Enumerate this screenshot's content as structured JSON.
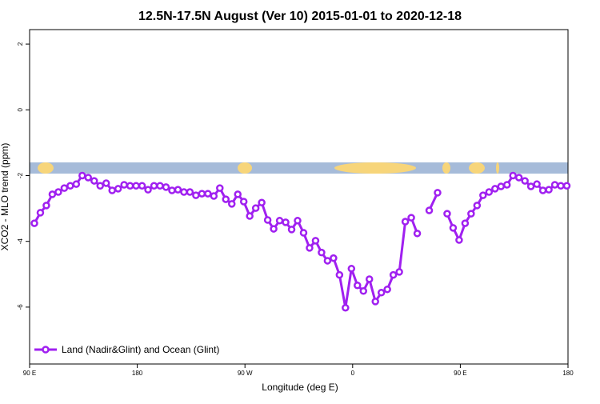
{
  "chart_data": {
    "type": "line",
    "title": "12.5N-17.5N August (Ver 10)   2015-01-01 to 2020-12-18",
    "x_label": "Longitude (deg E)",
    "y_label": "XCO2 - MLO trend (ppm)",
    "xlim": [
      90,
      540
    ],
    "ylim": [
      -7.73,
      2.44
    ],
    "xticks": [
      {
        "value": 90,
        "label": "90 E"
      },
      180,
      {
        "value": 270,
        "label": "90 W"
      },
      {
        "value": 360,
        "label": "0"
      },
      {
        "value": 450,
        "label": "90 E"
      },
      {
        "value": 540,
        "label": "180"
      }
    ],
    "yticks": [
      -6,
      -4,
      -2,
      0,
      2
    ],
    "legend": "bottom-left",
    "x": [
      94,
      99,
      104,
      109,
      114,
      119,
      124,
      129,
      134,
      139,
      144,
      149,
      154,
      159,
      164,
      169,
      174,
      179,
      184,
      189,
      194,
      199,
      204,
      209,
      214,
      219,
      224,
      229,
      234,
      239,
      244,
      249,
      254,
      259,
      264,
      269,
      274,
      279,
      284,
      289,
      294,
      299,
      304,
      309,
      314,
      319,
      324,
      329,
      334,
      339,
      344,
      349,
      354,
      359,
      364,
      369,
      374,
      379,
      384,
      389,
      394,
      399,
      404,
      409,
      414,
      419,
      424,
      431,
      435,
      439,
      444,
      449,
      454,
      459,
      464,
      469,
      474,
      479,
      484,
      489,
      494,
      499,
      504,
      509,
      514,
      519,
      524,
      529,
      534,
      539
    ],
    "series": [
      {
        "name": "Land (Nadir&Glint) and Ocean (Glint)",
        "color": "#a020f0",
        "values": [
          -3.45,
          -3.13,
          -2.91,
          -2.57,
          -2.5,
          -2.38,
          -2.31,
          -2.26,
          -2.0,
          -2.06,
          -2.16,
          -2.31,
          -2.23,
          -2.45,
          -2.4,
          -2.28,
          -2.31,
          -2.31,
          -2.31,
          -2.43,
          -2.31,
          -2.31,
          -2.35,
          -2.45,
          -2.43,
          -2.5,
          -2.5,
          -2.6,
          -2.55,
          -2.55,
          -2.62,
          -2.38,
          -2.72,
          -2.86,
          -2.57,
          -2.79,
          -3.23,
          -2.99,
          -2.82,
          -3.35,
          -3.62,
          -3.37,
          -3.42,
          -3.64,
          -3.37,
          -3.74,
          -4.2,
          -3.98,
          -4.34,
          -4.59,
          -4.51,
          -5.02,
          -6.02,
          -4.83,
          -5.34,
          -5.51,
          -5.15,
          -5.83,
          -5.56,
          -5.46,
          -5.02,
          -4.93,
          -3.4,
          -3.28,
          -3.76,
          null,
          -3.06,
          -2.52,
          null,
          -3.16,
          -3.59,
          -3.96,
          -3.45,
          -3.16,
          -2.91,
          -2.6,
          -2.5,
          -2.4,
          -2.33,
          -2.28,
          -2.0,
          -2.06,
          -2.16,
          -2.33,
          -2.26,
          -2.45,
          -2.43,
          -2.28,
          -2.31,
          -2.31
        ]
      }
    ]
  }
}
